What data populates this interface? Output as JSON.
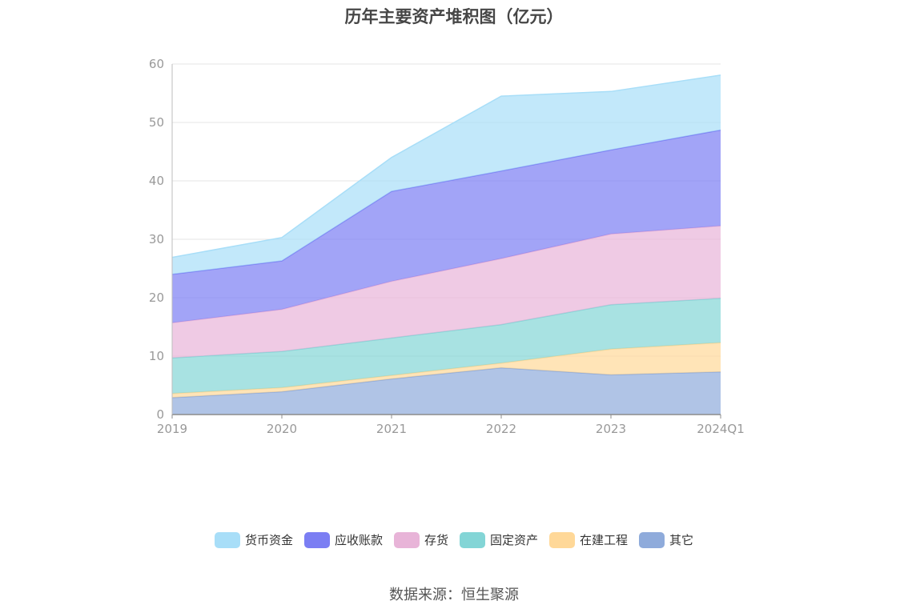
{
  "chart_data": {
    "type": "area",
    "stacked": true,
    "title": "历年主要资产堆积图（亿元）",
    "categories": [
      "2019",
      "2020",
      "2021",
      "2022",
      "2023",
      "2024Q1"
    ],
    "ylim": [
      0,
      60
    ],
    "yticks": [
      0,
      10,
      20,
      30,
      40,
      50,
      60
    ],
    "grid": true,
    "legend_position": "bottom",
    "series": [
      {
        "name": "其它",
        "values": [
          2.9,
          3.9,
          6.1,
          8.0,
          6.8,
          7.3
        ],
        "color": "#8fabdb"
      },
      {
        "name": "在建工程",
        "values": [
          0.7,
          0.7,
          0.6,
          0.8,
          4.4,
          5.0
        ],
        "color": "#ffd898"
      },
      {
        "name": "固定资产",
        "values": [
          6.1,
          6.2,
          6.4,
          6.6,
          7.6,
          7.6
        ],
        "color": "#83d5d6"
      },
      {
        "name": "存货",
        "values": [
          6.0,
          7.2,
          9.7,
          11.3,
          12.1,
          12.4
        ],
        "color": "#e8b4d8"
      },
      {
        "name": "应收账款",
        "values": [
          8.3,
          8.3,
          15.4,
          15.0,
          14.4,
          16.4
        ],
        "color": "#7b7ef3"
      },
      {
        "name": "货币资金",
        "values": [
          2.9,
          4.0,
          5.8,
          12.8,
          10.0,
          9.4
        ],
        "color": "#a8def8"
      }
    ]
  },
  "legend": {
    "items": [
      {
        "label": "货币资金",
        "color": "#a8def8"
      },
      {
        "label": "应收账款",
        "color": "#7b7ef3"
      },
      {
        "label": "存货",
        "color": "#e8b4d8"
      },
      {
        "label": "固定资产",
        "color": "#83d5d6"
      },
      {
        "label": "在建工程",
        "color": "#ffd898"
      },
      {
        "label": "其它",
        "color": "#8fabdb"
      }
    ]
  },
  "source": "数据来源：恒生聚源"
}
